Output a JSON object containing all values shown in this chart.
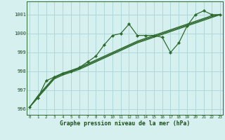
{
  "xlabel": "Graphe pression niveau de la mer (hPa)",
  "x": [
    0,
    1,
    2,
    3,
    4,
    5,
    6,
    7,
    8,
    9,
    10,
    11,
    12,
    13,
    14,
    15,
    16,
    17,
    18,
    19,
    20,
    21,
    22,
    23
  ],
  "line_main": [
    996.1,
    996.6,
    997.5,
    997.7,
    997.9,
    998.0,
    998.2,
    998.5,
    998.8,
    999.4,
    999.9,
    1000.0,
    1000.5,
    999.9,
    999.9,
    999.9,
    999.8,
    999.0,
    999.5,
    1000.4,
    1001.0,
    1001.2,
    1001.0,
    1001.0
  ],
  "line_t1": [
    996.1,
    996.7,
    997.2,
    997.7,
    997.9,
    998.05,
    998.2,
    998.4,
    998.6,
    998.8,
    999.0,
    999.2,
    999.4,
    999.6,
    999.75,
    999.9,
    1000.05,
    1000.2,
    1000.35,
    1000.5,
    1000.65,
    1000.8,
    1000.95,
    1001.0
  ],
  "line_t2": [
    996.1,
    996.65,
    997.15,
    997.65,
    997.85,
    998.0,
    998.15,
    998.35,
    998.55,
    998.75,
    998.95,
    999.15,
    999.35,
    999.55,
    999.7,
    999.85,
    1000.0,
    1000.15,
    1000.3,
    1000.45,
    1000.6,
    1000.75,
    1000.9,
    1001.0
  ],
  "line_t3": [
    996.1,
    996.6,
    997.1,
    997.6,
    997.8,
    997.95,
    998.1,
    998.3,
    998.5,
    998.7,
    998.9,
    999.1,
    999.3,
    999.5,
    999.65,
    999.8,
    999.95,
    1000.1,
    1000.25,
    1000.4,
    1000.55,
    1000.7,
    1000.85,
    1001.0
  ],
  "bg_color": "#d6f0f0",
  "grid_color": "#b0d8d8",
  "line_color": "#2d6a2d",
  "ylim": [
    995.7,
    1001.7
  ],
  "yticks": [
    996,
    997,
    998,
    999,
    1000,
    1001
  ],
  "xlim": [
    -0.3,
    23.3
  ],
  "xticks": [
    0,
    1,
    2,
    3,
    4,
    5,
    6,
    7,
    8,
    9,
    10,
    11,
    12,
    13,
    14,
    15,
    16,
    17,
    18,
    19,
    20,
    21,
    22,
    23
  ]
}
